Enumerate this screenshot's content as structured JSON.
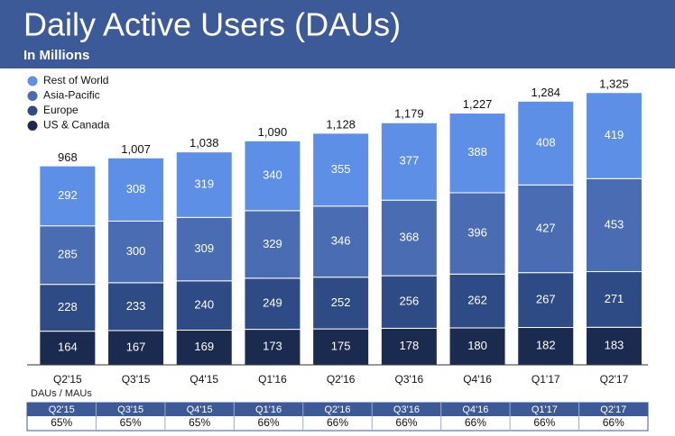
{
  "chart_data": {
    "type": "stacked_bar",
    "title": "Daily Active Users (DAUs)",
    "subtitle": "In Millions",
    "categories": [
      "Q2'15",
      "Q3'15",
      "Q4'15",
      "Q1'16",
      "Q2'16",
      "Q3'16",
      "Q4'16",
      "Q1'17",
      "Q2'17"
    ],
    "series": [
      {
        "name": "US & Canada",
        "color": "#1b2b4f",
        "values": [
          164,
          167,
          169,
          173,
          175,
          178,
          180,
          182,
          183
        ]
      },
      {
        "name": "Europe",
        "color": "#2f4b85",
        "values": [
          228,
          233,
          240,
          249,
          252,
          256,
          262,
          267,
          271
        ]
      },
      {
        "name": "Asia-Pacific",
        "color": "#4a6cb2",
        "values": [
          285,
          300,
          309,
          329,
          346,
          368,
          396,
          427,
          453
        ]
      },
      {
        "name": "Rest of World",
        "color": "#5d8fe6",
        "values": [
          292,
          308,
          319,
          340,
          355,
          377,
          388,
          408,
          419
        ]
      }
    ],
    "totals": {
      "values": [
        968,
        1007,
        1038,
        1090,
        1128,
        1179,
        1227,
        1284,
        1325
      ],
      "value_labels": [
        "968",
        "1,007",
        "1,038",
        "1,090",
        "1,128",
        "1,179",
        "1,227",
        "1,284",
        "1,325"
      ]
    },
    "ratio_table": {
      "label": "DAUs / MAUs",
      "values": [
        65,
        65,
        65,
        66,
        66,
        66,
        66,
        66,
        66
      ],
      "value_labels": [
        "65%",
        "65%",
        "65%",
        "66%",
        "66%",
        "66%",
        "66%",
        "66%",
        "66%"
      ]
    },
    "legend": "top-left"
  }
}
